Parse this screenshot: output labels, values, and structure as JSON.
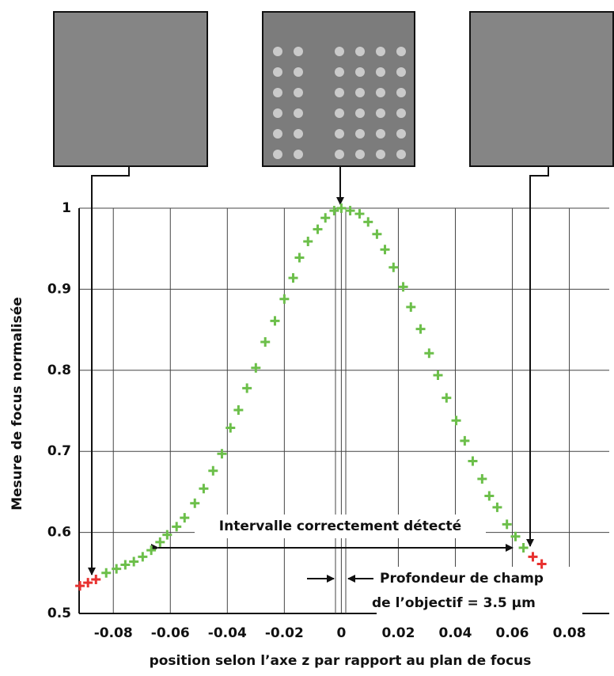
{
  "chart_data": {
    "type": "scatter",
    "x_label": "position selon l’axe z par rapport au plan de focus",
    "y_label": "Mesure de focus normalisée",
    "annotations": [
      "Intervalle correctement détecté",
      "Profondeur de champ",
      "de l’objectif = 3.5 µm"
    ],
    "xlim": [
      -0.092,
      0.094
    ],
    "ylim": [
      0.5,
      1
    ],
    "xticks": [
      -0.08,
      -0.06,
      -0.04,
      -0.02,
      0,
      0.02,
      0.04,
      0.06,
      0.08
    ],
    "yticks": [
      0.5,
      0.6,
      0.7,
      0.8,
      0.9,
      1
    ],
    "grid": true,
    "series": [
      {
        "color": "#6cbf4a",
        "x": [
          -0.0825,
          -0.0789,
          -0.0758,
          -0.0728,
          -0.0697,
          -0.0667,
          -0.0636,
          -0.0611,
          -0.0578,
          -0.055,
          -0.0514,
          -0.0483,
          -0.045,
          -0.0419,
          -0.0389,
          -0.0361,
          -0.0331,
          -0.03,
          -0.0267,
          -0.0233,
          -0.02,
          -0.0169,
          -0.0147,
          -0.0117,
          -0.0083,
          -0.0056,
          -0.0025,
          0,
          0.0031,
          0.0064,
          0.0094,
          0.0125,
          0.0153,
          0.0183,
          0.0217,
          0.0244,
          0.0278,
          0.0308,
          0.0339,
          0.0369,
          0.0403,
          0.0433,
          0.0461,
          0.0494,
          0.0519,
          0.0547,
          0.0581,
          0.0611,
          0.0639
        ],
        "values": [
          0.55,
          0.555,
          0.56,
          0.564,
          0.57,
          0.578,
          0.588,
          0.597,
          0.607,
          0.618,
          0.636,
          0.654,
          0.676,
          0.697,
          0.729,
          0.751,
          0.778,
          0.803,
          0.835,
          0.861,
          0.888,
          0.914,
          0.939,
          0.959,
          0.974,
          0.988,
          0.997,
          1,
          0.997,
          0.993,
          0.983,
          0.968,
          0.949,
          0.927,
          0.903,
          0.878,
          0.851,
          0.821,
          0.794,
          0.766,
          0.738,
          0.713,
          0.688,
          0.666,
          0.645,
          0.631,
          0.61,
          0.595,
          0.581
        ]
      },
      {
        "color": "#e8312f",
        "x": [
          -0.0917,
          -0.0889,
          -0.0861,
          0.0672,
          0.0703
        ],
        "values": [
          0.534,
          0.538,
          0.542,
          0.57,
          0.561
        ]
      }
    ]
  }
}
